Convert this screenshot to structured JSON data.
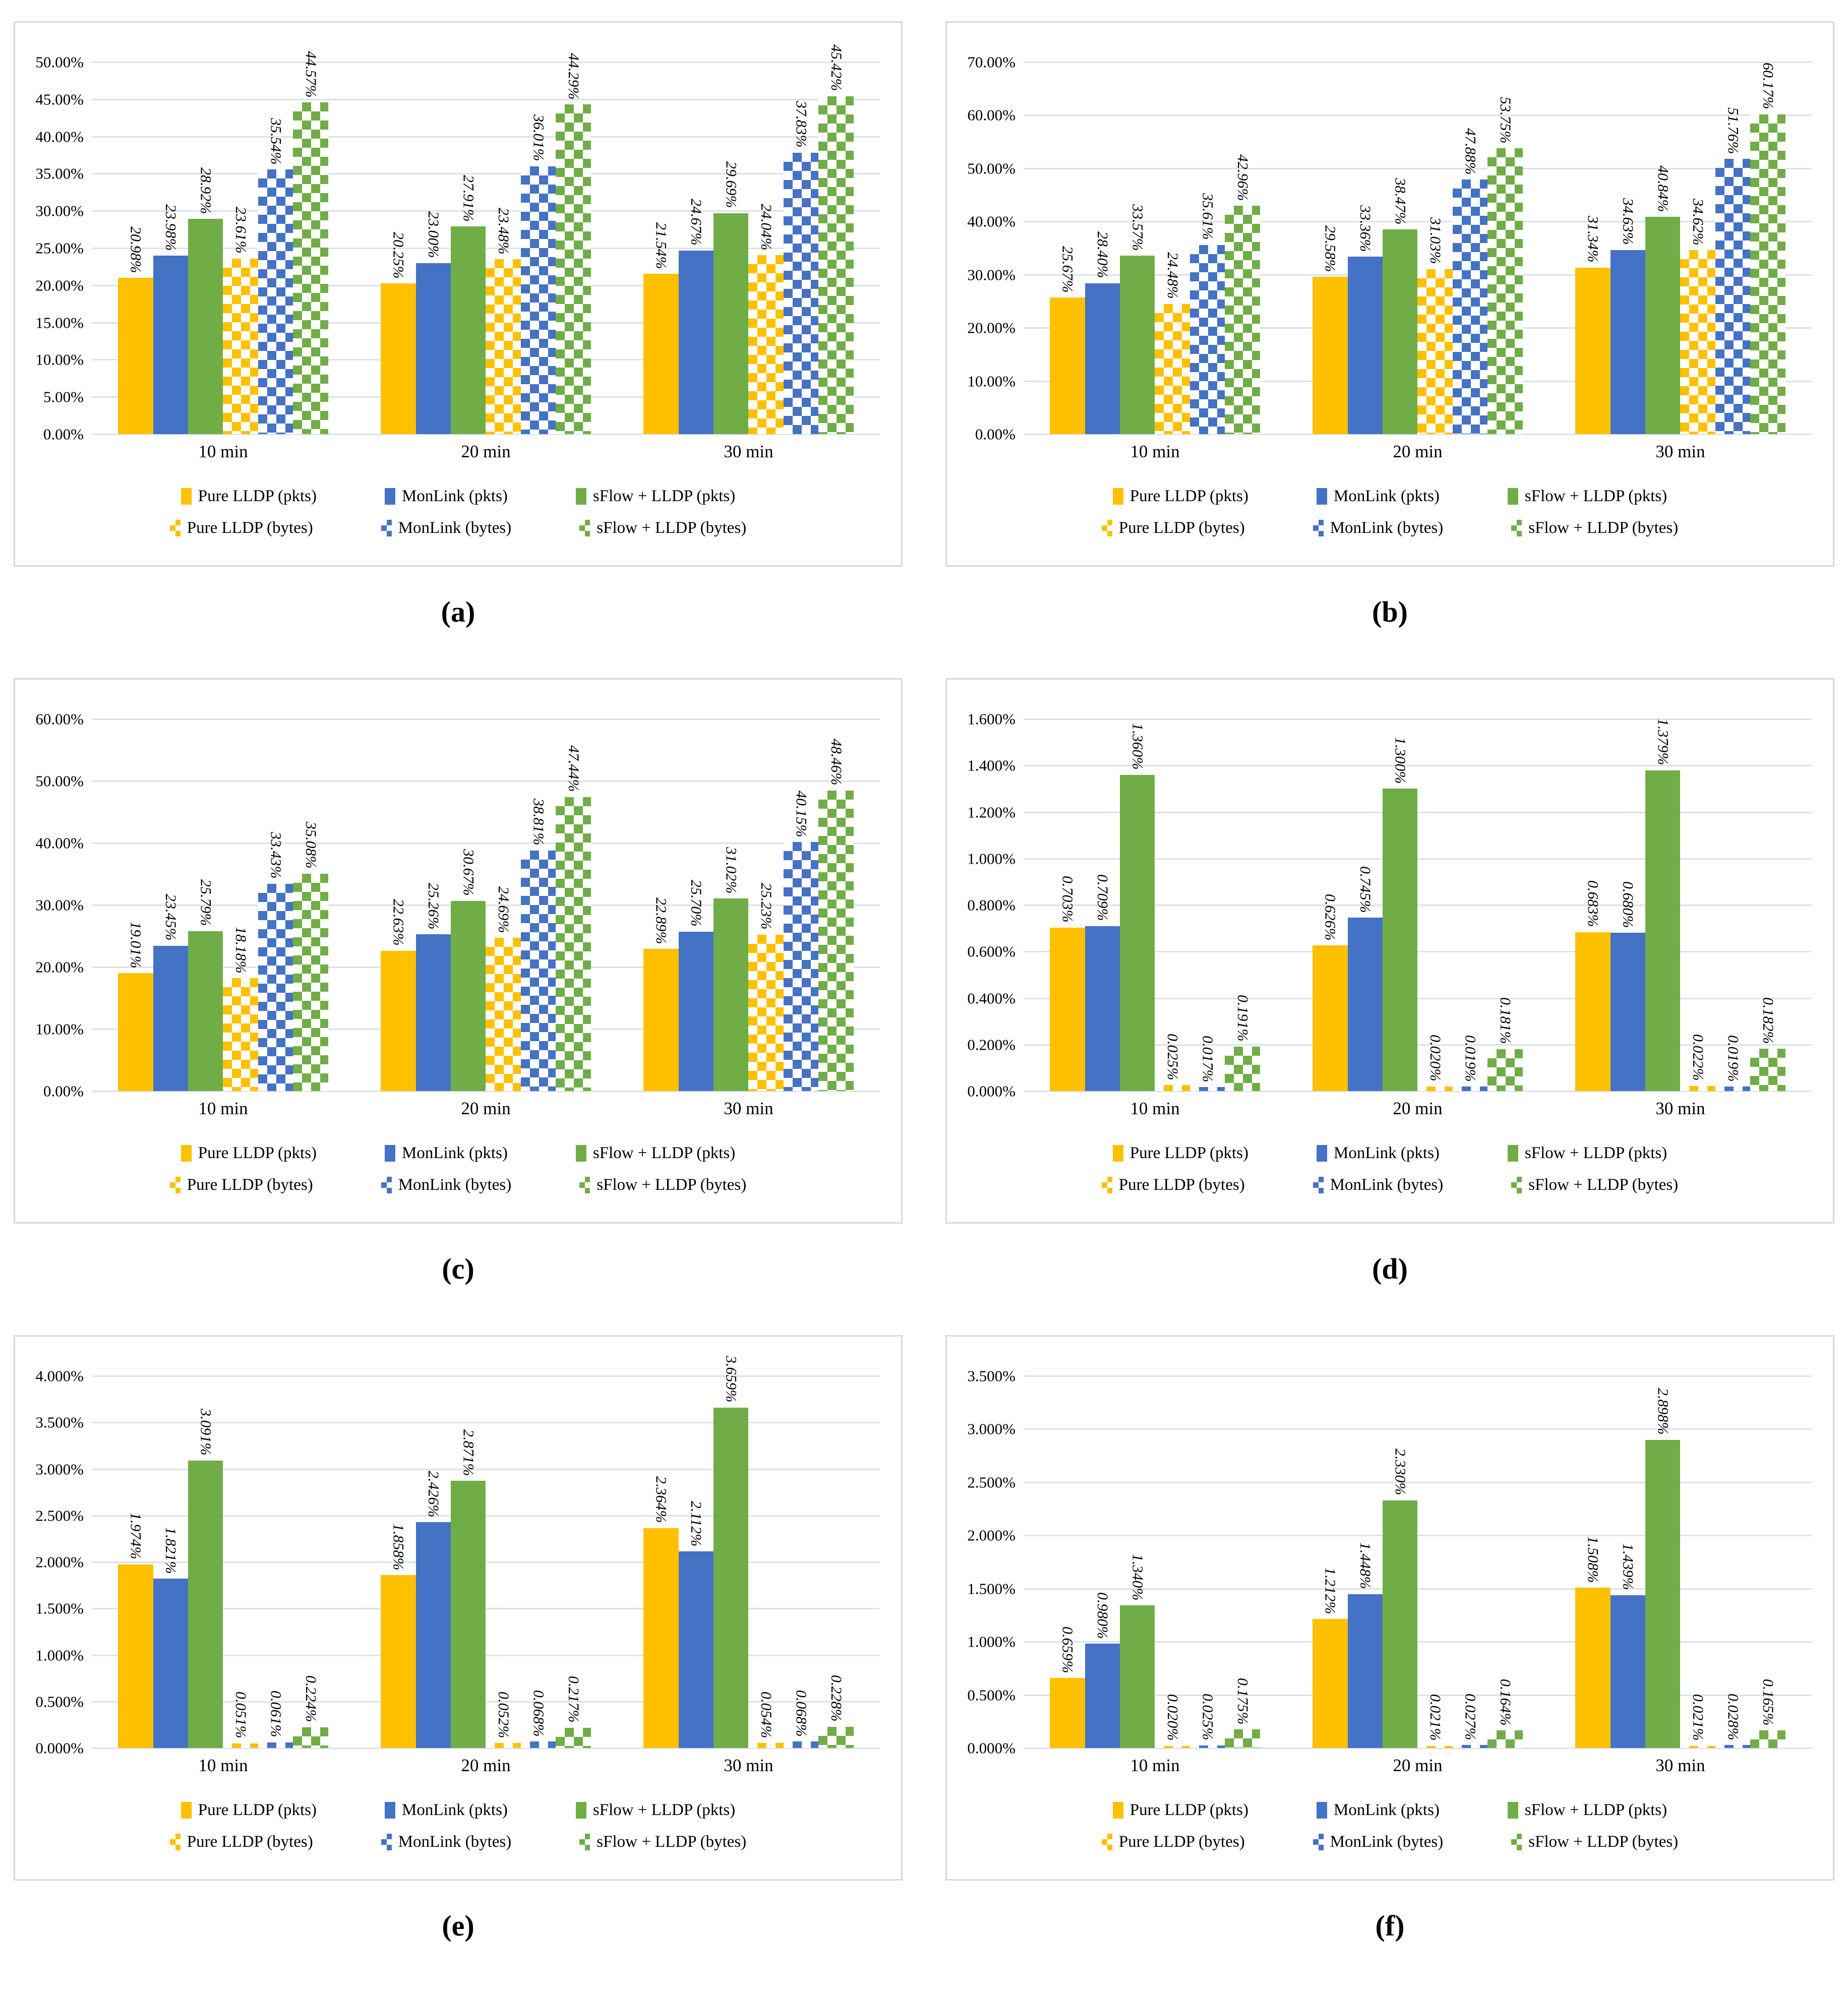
{
  "colors": {
    "pure_lldp_yellow": "#FFC000",
    "monlink_blue": "#4472C4",
    "sflow_green": "#70AD47",
    "gridline": "#DBE2EC",
    "panel_border": "#D9D9D9",
    "text": "#000000"
  },
  "chart_data": [
    {
      "id": "a",
      "type": "bar",
      "caption": "(a)",
      "categories": [
        "10 min",
        "20 min",
        "30 min"
      ],
      "y_axis": {
        "min": 0,
        "max": 50,
        "step": 5,
        "grid": true,
        "tick_labels": [
          "0.00%",
          "5.00%",
          "10.00%",
          "15.00%",
          "20.00%",
          "25.00%",
          "30.00%",
          "35.00%",
          "40.00%",
          "45.00%",
          "50.00%"
        ]
      },
      "value_label_decimals": 2,
      "legend_position": "bottom",
      "series": [
        {
          "name": "Pure LLDP (pkts)",
          "color": "#FFC000",
          "pattern": "solid",
          "values": [
            20.98,
            20.25,
            21.54
          ]
        },
        {
          "name": "MonLink (pkts)",
          "color": "#4472C4",
          "pattern": "solid",
          "values": [
            23.98,
            23.0,
            24.67
          ]
        },
        {
          "name": "sFlow + LLDP (pkts)",
          "color": "#70AD47",
          "pattern": "solid",
          "values": [
            28.92,
            27.91,
            29.69
          ]
        },
        {
          "name": "Pure LLDP (bytes)",
          "color": "#FFC000",
          "pattern": "checker",
          "values": [
            23.61,
            23.48,
            24.04
          ]
        },
        {
          "name": "MonLink (bytes)",
          "color": "#4472C4",
          "pattern": "checker",
          "values": [
            35.54,
            36.01,
            37.83
          ]
        },
        {
          "name": "sFlow + LLDP (bytes)",
          "color": "#70AD47",
          "pattern": "checker",
          "values": [
            44.57,
            44.29,
            45.42
          ]
        }
      ]
    },
    {
      "id": "b",
      "type": "bar",
      "caption": "(b)",
      "categories": [
        "10 min",
        "20 min",
        "30 min"
      ],
      "y_axis": {
        "min": 0,
        "max": 70,
        "step": 10,
        "grid": true,
        "tick_labels": [
          "0.00%",
          "10.00%",
          "20.00%",
          "30.00%",
          "40.00%",
          "50.00%",
          "60.00%",
          "70.00%"
        ]
      },
      "value_label_decimals": 2,
      "legend_position": "bottom",
      "series": [
        {
          "name": "Pure LLDP (pkts)",
          "color": "#FFC000",
          "pattern": "solid",
          "values": [
            25.67,
            29.58,
            31.34
          ]
        },
        {
          "name": "MonLink (pkts)",
          "color": "#4472C4",
          "pattern": "solid",
          "values": [
            28.4,
            33.36,
            34.63
          ]
        },
        {
          "name": "sFlow + LLDP (pkts)",
          "color": "#70AD47",
          "pattern": "solid",
          "values": [
            33.57,
            38.47,
            40.84
          ]
        },
        {
          "name": "Pure LLDP (bytes)",
          "color": "#FFC000",
          "pattern": "checker",
          "values": [
            24.48,
            31.03,
            34.62
          ]
        },
        {
          "name": "MonLink (bytes)",
          "color": "#4472C4",
          "pattern": "checker",
          "values": [
            35.61,
            47.88,
            51.76
          ]
        },
        {
          "name": "sFlow + LLDP (bytes)",
          "color": "#70AD47",
          "pattern": "checker",
          "values": [
            42.96,
            53.75,
            60.17
          ]
        }
      ]
    },
    {
      "id": "c",
      "type": "bar",
      "caption": "(c)",
      "categories": [
        "10 min",
        "20 min",
        "30 min"
      ],
      "y_axis": {
        "min": 0,
        "max": 60,
        "step": 10,
        "grid": true,
        "tick_labels": [
          "0.00%",
          "10.00%",
          "20.00%",
          "30.00%",
          "40.00%",
          "50.00%",
          "60.00%"
        ]
      },
      "value_label_decimals": 2,
      "legend_position": "bottom",
      "series": [
        {
          "name": "Pure LLDP (pkts)",
          "color": "#FFC000",
          "pattern": "solid",
          "values": [
            19.01,
            22.63,
            22.89
          ]
        },
        {
          "name": "MonLink (pkts)",
          "color": "#4472C4",
          "pattern": "solid",
          "values": [
            23.45,
            25.26,
            25.7
          ]
        },
        {
          "name": "sFlow + LLDP (pkts)",
          "color": "#70AD47",
          "pattern": "solid",
          "values": [
            25.79,
            30.67,
            31.02
          ]
        },
        {
          "name": "Pure LLDP (bytes)",
          "color": "#FFC000",
          "pattern": "checker",
          "values": [
            18.18,
            24.69,
            25.23
          ]
        },
        {
          "name": "MonLink (bytes)",
          "color": "#4472C4",
          "pattern": "checker",
          "values": [
            33.43,
            38.81,
            40.15
          ]
        },
        {
          "name": "sFlow + LLDP (bytes)",
          "color": "#70AD47",
          "pattern": "checker",
          "values": [
            35.08,
            47.44,
            48.46
          ]
        }
      ]
    },
    {
      "id": "d",
      "type": "bar",
      "caption": "(d)",
      "categories": [
        "10 min",
        "20 min",
        "30 min"
      ],
      "y_axis": {
        "min": 0,
        "max": 1.6,
        "step": 0.2,
        "grid": true,
        "tick_labels": [
          "0.000%",
          "0.200%",
          "0.400%",
          "0.600%",
          "0.800%",
          "1.000%",
          "1.200%",
          "1.400%",
          "1.600%"
        ]
      },
      "value_label_decimals": 3,
      "legend_position": "bottom",
      "series": [
        {
          "name": "Pure LLDP (pkts)",
          "color": "#FFC000",
          "pattern": "solid",
          "values": [
            0.703,
            0.626,
            0.683
          ]
        },
        {
          "name": "MonLink (pkts)",
          "color": "#4472C4",
          "pattern": "solid",
          "values": [
            0.709,
            0.745,
            0.68
          ]
        },
        {
          "name": "sFlow + LLDP (pkts)",
          "color": "#70AD47",
          "pattern": "solid",
          "values": [
            1.36,
            1.3,
            1.379
          ]
        },
        {
          "name": "Pure LLDP (bytes)",
          "color": "#FFC000",
          "pattern": "checker",
          "values": [
            0.025,
            0.02,
            0.022
          ]
        },
        {
          "name": "MonLink (bytes)",
          "color": "#4472C4",
          "pattern": "checker",
          "values": [
            0.017,
            0.019,
            0.019
          ]
        },
        {
          "name": "sFlow + LLDP (bytes)",
          "color": "#70AD47",
          "pattern": "checker",
          "values": [
            0.191,
            0.181,
            0.182
          ]
        }
      ]
    },
    {
      "id": "e",
      "type": "bar",
      "caption": "(e)",
      "categories": [
        "10 min",
        "20 min",
        "30 min"
      ],
      "y_axis": {
        "min": 0,
        "max": 4.0,
        "step": 0.5,
        "grid": true,
        "tick_labels": [
          "0.000%",
          "0.500%",
          "1.000%",
          "1.500%",
          "2.000%",
          "2.500%",
          "3.000%",
          "3.500%",
          "4.000%"
        ]
      },
      "value_label_decimals": 3,
      "legend_position": "bottom",
      "series": [
        {
          "name": "Pure LLDP (pkts)",
          "color": "#FFC000",
          "pattern": "solid",
          "values": [
            1.974,
            1.858,
            2.364
          ]
        },
        {
          "name": "MonLink (pkts)",
          "color": "#4472C4",
          "pattern": "solid",
          "values": [
            1.821,
            2.426,
            2.112
          ]
        },
        {
          "name": "sFlow + LLDP (pkts)",
          "color": "#70AD47",
          "pattern": "solid",
          "values": [
            3.091,
            2.871,
            3.659
          ]
        },
        {
          "name": "Pure LLDP (bytes)",
          "color": "#FFC000",
          "pattern": "checker",
          "values": [
            0.051,
            0.052,
            0.054
          ]
        },
        {
          "name": "MonLink (bytes)",
          "color": "#4472C4",
          "pattern": "checker",
          "values": [
            0.061,
            0.068,
            0.068
          ]
        },
        {
          "name": "sFlow + LLDP (bytes)",
          "color": "#70AD47",
          "pattern": "checker",
          "values": [
            0.224,
            0.217,
            0.228
          ]
        }
      ]
    },
    {
      "id": "f",
      "type": "bar",
      "caption": "(f)",
      "categories": [
        "10 min",
        "20 min",
        "30 min"
      ],
      "y_axis": {
        "min": 0,
        "max": 3.5,
        "step": 0.5,
        "grid": true,
        "tick_labels": [
          "0.000%",
          "0.500%",
          "1.000%",
          "1.500%",
          "2.000%",
          "2.500%",
          "3.000%",
          "3.500%"
        ]
      },
      "value_label_decimals": 3,
      "legend_position": "bottom",
      "series": [
        {
          "name": "Pure LLDP (pkts)",
          "color": "#FFC000",
          "pattern": "solid",
          "values": [
            0.659,
            1.212,
            1.508
          ]
        },
        {
          "name": "MonLink (pkts)",
          "color": "#4472C4",
          "pattern": "solid",
          "values": [
            0.98,
            1.448,
            1.439
          ]
        },
        {
          "name": "sFlow + LLDP (pkts)",
          "color": "#70AD47",
          "pattern": "solid",
          "values": [
            1.34,
            2.33,
            2.898
          ]
        },
        {
          "name": "Pure LLDP (bytes)",
          "color": "#FFC000",
          "pattern": "checker",
          "values": [
            0.02,
            0.021,
            0.021
          ]
        },
        {
          "name": "MonLink (bytes)",
          "color": "#4472C4",
          "pattern": "checker",
          "values": [
            0.025,
            0.027,
            0.028
          ]
        },
        {
          "name": "sFlow + LLDP (bytes)",
          "color": "#70AD47",
          "pattern": "checker",
          "values": [
            0.175,
            0.164,
            0.165
          ]
        }
      ]
    }
  ]
}
